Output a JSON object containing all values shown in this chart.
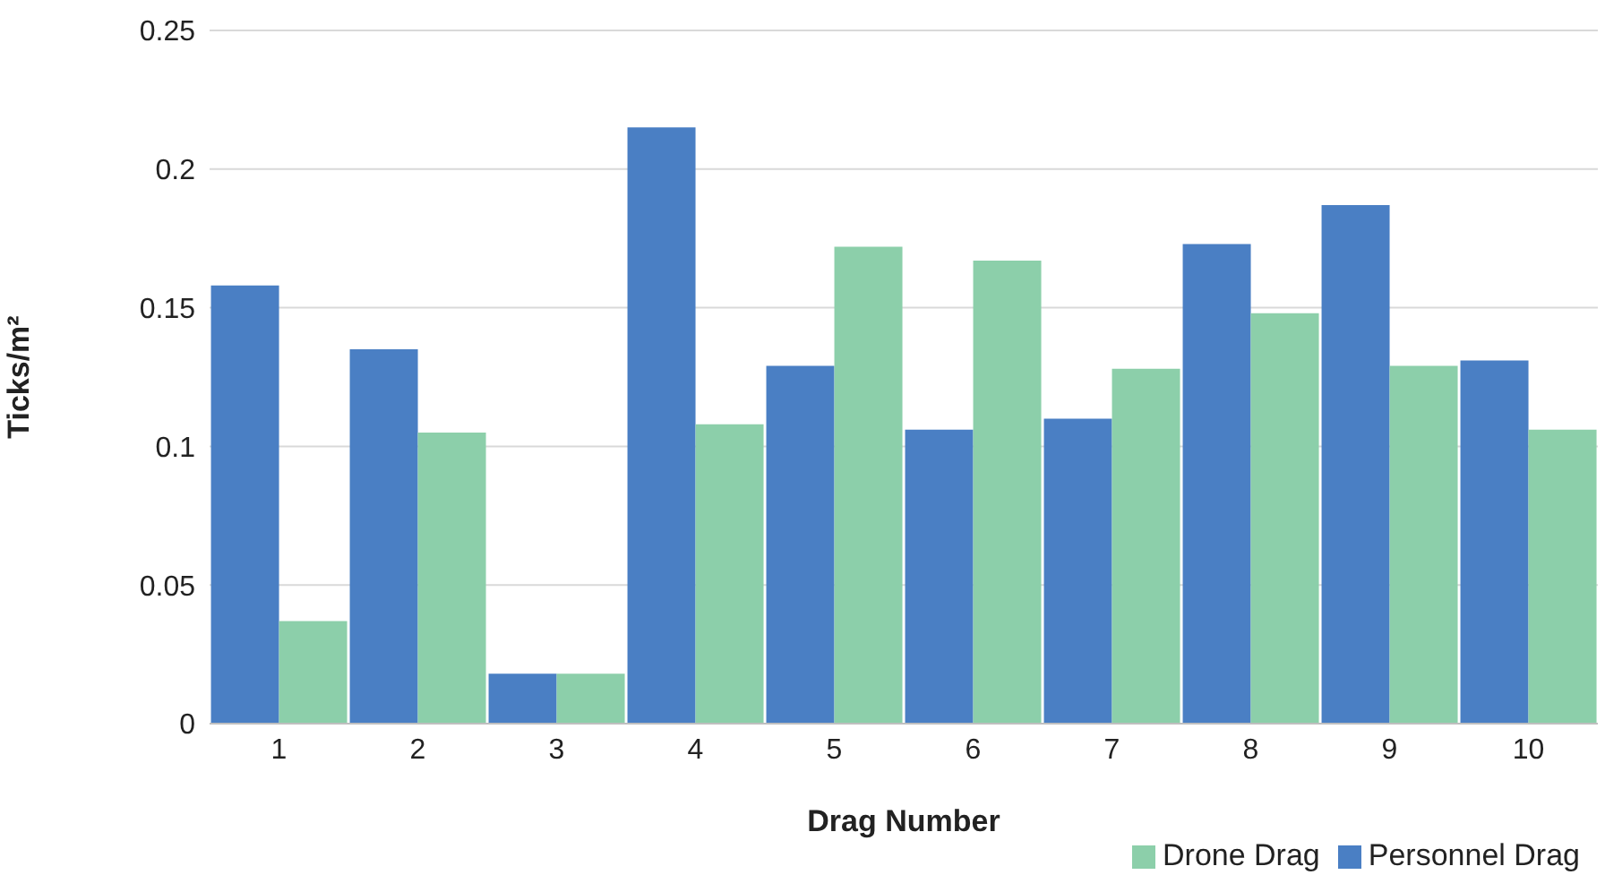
{
  "chart_data": {
    "type": "bar",
    "xlabel": "Drag Number",
    "ylabel": "Ticks/m²",
    "categories": [
      "1",
      "2",
      "3",
      "4",
      "5",
      "6",
      "7",
      "8",
      "9",
      "10"
    ],
    "series": [
      {
        "name": "Personnel Drag",
        "color": "#4a7fc4",
        "values": [
          0.158,
          0.135,
          0.018,
          0.215,
          0.129,
          0.106,
          0.11,
          0.173,
          0.187,
          0.131
        ]
      },
      {
        "name": "Drone Drag",
        "color": "#8ccfaa",
        "values": [
          0.037,
          0.105,
          0.018,
          0.108,
          0.172,
          0.167,
          0.128,
          0.148,
          0.129,
          0.106
        ]
      }
    ],
    "ylim": [
      0,
      0.25
    ],
    "yticks": [
      0,
      0.05,
      0.1,
      0.15,
      0.2,
      0.25
    ],
    "grid": "y",
    "legend": "bottom right"
  }
}
